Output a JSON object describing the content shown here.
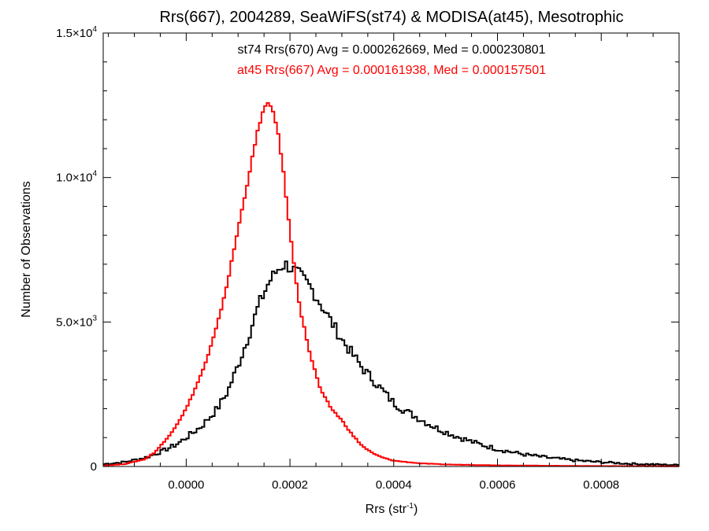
{
  "chart_data": {
    "type": "histogram",
    "title": "Rrs(667), 2004289, SeaWiFS(st74) & MODISA(at45), Mesotrophic",
    "xlabel": "Rrs (str",
    "xlabel_sup": "-1",
    "xlabel_close": ")",
    "ylabel": "Number of Observations",
    "xlim": [
      -0.00016,
      0.00095
    ],
    "ylim": [
      0,
      15000
    ],
    "grid": false,
    "x_ticks": [
      {
        "value": 0.0,
        "label": "0.0000"
      },
      {
        "value": 0.0002,
        "label": "0.0002"
      },
      {
        "value": 0.0004,
        "label": "0.0004"
      },
      {
        "value": 0.0006,
        "label": "0.0006"
      },
      {
        "value": 0.0008,
        "label": "0.0008"
      }
    ],
    "y_ticks": [
      {
        "value": 0,
        "mantissa": "0",
        "exp": ""
      },
      {
        "value": 5000,
        "mantissa": "5.0×10",
        "exp": "3"
      },
      {
        "value": 10000,
        "mantissa": "1.0×10",
        "exp": "4"
      },
      {
        "value": 15000,
        "mantissa": "1.5×10",
        "exp": "4"
      }
    ],
    "annotations": [
      {
        "text": "st74 Rrs(670) Avg = 0.000262669, Med = 0.000230801",
        "color": "#000000"
      },
      {
        "text": "at45 Rrs(667) Avg = 0.000161938, Med = 0.000157501",
        "color": "#ff0000"
      }
    ],
    "series": [
      {
        "name": "st74",
        "color": "#000000",
        "points": [
          [
            -0.00016,
            80
          ],
          [
            -0.00012,
            150
          ],
          [
            -8e-05,
            300
          ],
          [
            -5e-05,
            500
          ],
          [
            -2e-05,
            750
          ],
          [
            0.0,
            1000
          ],
          [
            3e-05,
            1400
          ],
          [
            6e-05,
            2000
          ],
          [
            8e-05,
            2600
          ],
          [
            0.0001,
            3500
          ],
          [
            0.00012,
            4500
          ],
          [
            0.00014,
            5600
          ],
          [
            0.00016,
            6400
          ],
          [
            0.00018,
            6900
          ],
          [
            0.00019,
            7000
          ],
          [
            0.0002,
            6900
          ],
          [
            0.00022,
            6600
          ],
          [
            0.00024,
            6200
          ],
          [
            0.00026,
            5600
          ],
          [
            0.00028,
            5000
          ],
          [
            0.0003,
            4400
          ],
          [
            0.00032,
            3900
          ],
          [
            0.00034,
            3400
          ],
          [
            0.00036,
            3000
          ],
          [
            0.00038,
            2600
          ],
          [
            0.0004,
            2200
          ],
          [
            0.00042,
            1950
          ],
          [
            0.00045,
            1650
          ],
          [
            0.00048,
            1350
          ],
          [
            0.00052,
            1050
          ],
          [
            0.00056,
            800
          ],
          [
            0.0006,
            600
          ],
          [
            0.00065,
            420
          ],
          [
            0.0007,
            300
          ],
          [
            0.00075,
            210
          ],
          [
            0.0008,
            150
          ],
          [
            0.00085,
            100
          ],
          [
            0.0009,
            70
          ],
          [
            0.00095,
            50
          ]
        ]
      },
      {
        "name": "at45",
        "color": "#ff0000",
        "points": [
          [
            -0.00016,
            30
          ],
          [
            -0.00012,
            80
          ],
          [
            -8e-05,
            250
          ],
          [
            -6e-05,
            500
          ],
          [
            -4e-05,
            900
          ],
          [
            -2e-05,
            1400
          ],
          [
            0.0,
            2000
          ],
          [
            2e-05,
            2800
          ],
          [
            4e-05,
            3700
          ],
          [
            6e-05,
            4900
          ],
          [
            8e-05,
            6400
          ],
          [
            0.0001,
            8200
          ],
          [
            0.00012,
            10000
          ],
          [
            0.00014,
            11800
          ],
          [
            0.00015,
            12400
          ],
          [
            0.00016,
            12550
          ],
          [
            0.00017,
            12200
          ],
          [
            0.00018,
            11200
          ],
          [
            0.00019,
            9800
          ],
          [
            0.0002,
            8100
          ],
          [
            0.00021,
            6700
          ],
          [
            0.00022,
            5400
          ],
          [
            0.00024,
            3800
          ],
          [
            0.00026,
            2600
          ],
          [
            0.00028,
            2000
          ],
          [
            0.0003,
            1600
          ],
          [
            0.00032,
            1100
          ],
          [
            0.00034,
            700
          ],
          [
            0.00036,
            450
          ],
          [
            0.00038,
            300
          ],
          [
            0.0004,
            200
          ],
          [
            0.00045,
            110
          ],
          [
            0.0005,
            70
          ],
          [
            0.0006,
            40
          ],
          [
            0.0007,
            25
          ],
          [
            0.0008,
            15
          ],
          [
            0.0009,
            10
          ],
          [
            0.00095,
            8
          ]
        ]
      }
    ]
  }
}
